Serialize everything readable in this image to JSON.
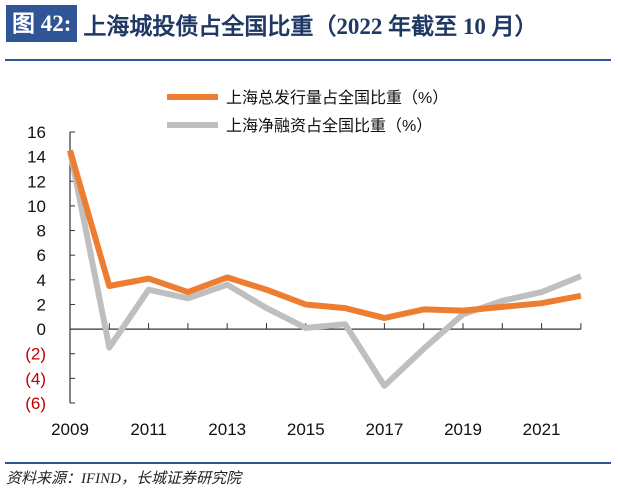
{
  "header": {
    "figure_label": "图 42:",
    "title": "上海城投债占全国比重（2022 年截至 10 月）"
  },
  "footer": {
    "source": "资料来源：IFIND，长城证券研究院"
  },
  "chart_data": {
    "type": "line",
    "title": "上海城投债占全国比重（2022 年截至 10 月）",
    "xlabel": "",
    "ylabel": "",
    "x": [
      2009,
      2010,
      2011,
      2012,
      2013,
      2014,
      2015,
      2016,
      2017,
      2018,
      2019,
      2020,
      2021,
      2022
    ],
    "x_tick_labels": [
      "2009",
      "2011",
      "2013",
      "2015",
      "2017",
      "2019",
      "2021"
    ],
    "x_ticks": [
      2009,
      2011,
      2013,
      2015,
      2017,
      2019,
      2021
    ],
    "ylim": [
      -6,
      16
    ],
    "y_ticks": [
      16,
      14,
      12,
      10,
      8,
      6,
      4,
      2,
      0,
      -2,
      -4,
      -6
    ],
    "y_tick_labels": [
      "16",
      "14",
      "12",
      "10",
      "8",
      "6",
      "4",
      "2",
      "0",
      "(2)",
      "(4)",
      "(6)"
    ],
    "negative_label_color": "#c00000",
    "grid": false,
    "legend_position": "top",
    "series": [
      {
        "name": "上海总发行量占全国比重（%）",
        "color": "#ed7d31",
        "values": [
          14.5,
          3.5,
          4.1,
          3.0,
          4.2,
          3.2,
          2.0,
          1.7,
          0.9,
          1.6,
          1.5,
          1.8,
          2.1,
          2.7
        ]
      },
      {
        "name": "上海净融资占全国比重（%）",
        "color": "#bfbfbf",
        "values": [
          14.5,
          -1.5,
          3.2,
          2.5,
          3.6,
          1.7,
          0.1,
          0.4,
          -4.6,
          -1.6,
          1.2,
          2.3,
          3.0,
          4.3
        ]
      }
    ]
  }
}
